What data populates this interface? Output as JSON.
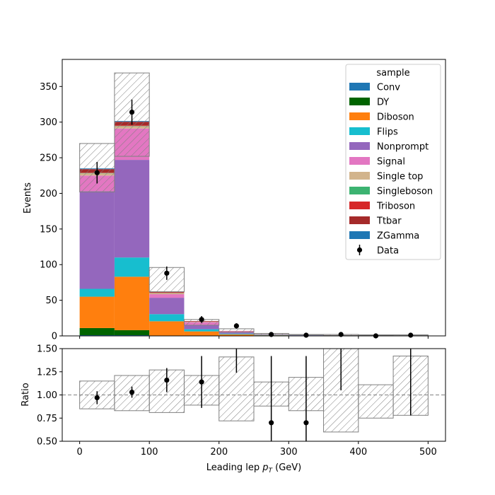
{
  "chart_data": [
    {
      "type": "bar",
      "stacked": true,
      "x_bin_edges": [
        0,
        50,
        100,
        150,
        200,
        250,
        300,
        350,
        400,
        450,
        500
      ],
      "xlim": [
        -25,
        525
      ],
      "ylim": [
        0,
        388
      ],
      "ylabel": "Events",
      "yticks": [
        0,
        50,
        100,
        150,
        200,
        250,
        300,
        350
      ],
      "xticks": [
        0,
        100,
        200,
        300,
        400,
        500
      ],
      "legend": {
        "title": "sample",
        "position": "top-right"
      },
      "series": [
        {
          "name": "Conv",
          "color": "#1f77b4",
          "values": [
            1,
            1,
            0,
            0,
            0,
            0,
            0,
            0,
            0,
            0
          ]
        },
        {
          "name": "DY",
          "color": "#006400",
          "values": [
            10,
            7,
            0.5,
            0.3,
            0.1,
            0,
            0,
            0,
            0,
            0
          ]
        },
        {
          "name": "Diboson",
          "color": "#ff7f0e",
          "values": [
            44,
            75,
            20,
            6,
            2,
            0.8,
            0.5,
            0.5,
            0.2,
            0.2
          ]
        },
        {
          "name": "Flips",
          "color": "#17becf",
          "values": [
            11,
            27,
            10,
            3,
            1,
            0.3,
            0.2,
            0.1,
            0.1,
            0.1
          ]
        },
        {
          "name": "Nonprompt",
          "color": "#9467bd",
          "values": [
            137,
            137,
            23,
            6,
            2,
            0.6,
            0.3,
            0.2,
            0.1,
            0.1
          ]
        },
        {
          "name": "Signal",
          "color": "#e377c2",
          "values": [
            22,
            44,
            5,
            4,
            1.3,
            0.4,
            0.3,
            0.2,
            0.1,
            0.1
          ]
        },
        {
          "name": "Single top",
          "color": "#d2b48c",
          "values": [
            3,
            3,
            1.5,
            0.5,
            0.2,
            0.1,
            0,
            0,
            0,
            0
          ]
        },
        {
          "name": "Singleboson",
          "color": "#3cb371",
          "values": [
            0.5,
            0.5,
            0.3,
            0.1,
            0,
            0,
            0,
            0,
            0,
            0
          ]
        },
        {
          "name": "Triboson",
          "color": "#d62728",
          "values": [
            0.5,
            1,
            0.5,
            0.3,
            0.1,
            0.05,
            0.05,
            0,
            0,
            0
          ]
        },
        {
          "name": "Ttbar",
          "color": "#a52a2a",
          "values": [
            5,
            5,
            1.5,
            0.6,
            0.3,
            0.1,
            0.05,
            0.05,
            0,
            0
          ]
        },
        {
          "name": "ZGamma",
          "color": "#1f77b4",
          "values": [
            1,
            1,
            0,
            0,
            0,
            0,
            0,
            0,
            0,
            0
          ]
        }
      ],
      "uncertainty_band": {
        "lower": [
          202,
          252,
          62,
          15,
          5,
          1.8,
          1.4,
          0.6,
          0.5,
          0.4
        ],
        "upper": [
          270,
          369,
          96,
          23,
          10,
          3.5,
          2.0,
          2.0,
          1.5,
          1.5
        ]
      },
      "data_points": {
        "name": "Data",
        "x": [
          25,
          75,
          125,
          175,
          225,
          275,
          325,
          375,
          425,
          475
        ],
        "y": [
          229,
          314,
          88,
          23,
          14,
          2,
          1,
          2,
          0,
          1
        ],
        "yerr": [
          15.1,
          17.7,
          9.4,
          4.8,
          3.7,
          1.4,
          1,
          1.4,
          0,
          1
        ]
      }
    },
    {
      "type": "ratio",
      "x_bin_edges": [
        0,
        50,
        100,
        150,
        200,
        250,
        300,
        350,
        400,
        450,
        500
      ],
      "xlim": [
        -25,
        525
      ],
      "ylim": [
        0.5,
        1.5
      ],
      "ylabel": "Ratio",
      "xlabel": "Leading lep p_T (GeV)",
      "xlabel_main": "Leading lep ",
      "xlabel_sym": "p",
      "xlabel_sub": "T",
      "xlabel_unit": " (GeV)",
      "yticks": [
        0.5,
        0.75,
        1.0,
        1.25,
        1.5
      ],
      "ytick_labels": [
        "0.50",
        "0.75",
        "1.00",
        "1.25",
        "1.50"
      ],
      "xticks": [
        0,
        100,
        200,
        300,
        400,
        500
      ],
      "reference_line": 1.0,
      "uncertainty_band": {
        "lower": [
          0.85,
          0.83,
          0.81,
          0.89,
          0.72,
          0.88,
          0.83,
          0.6,
          0.75,
          0.78
        ],
        "upper": [
          1.15,
          1.21,
          1.27,
          1.21,
          1.41,
          1.14,
          1.19,
          1.58,
          1.11,
          1.42
        ]
      },
      "data_points": {
        "x": [
          25,
          75,
          125,
          175,
          225,
          275,
          325,
          375,
          425,
          475
        ],
        "y": [
          0.97,
          1.03,
          1.16,
          1.14,
          1.55,
          0.7,
          0.7,
          1.55,
          null,
          1.55
        ],
        "yerr": [
          0.07,
          0.06,
          0.13,
          0.28,
          0.31,
          0.72,
          0.72,
          0.5,
          null,
          0.77
        ]
      }
    }
  ]
}
